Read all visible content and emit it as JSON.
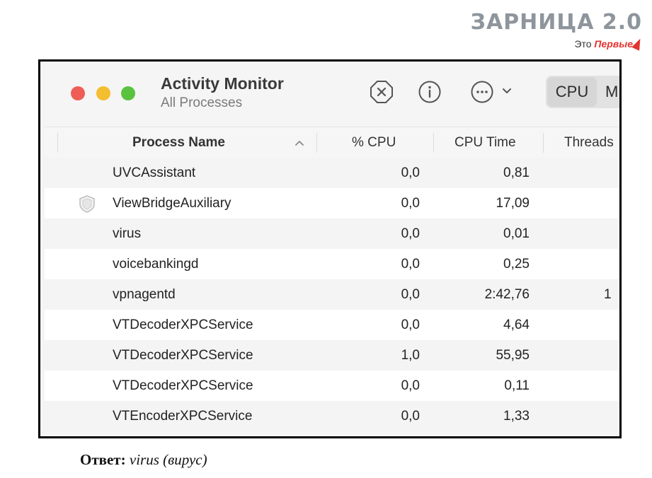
{
  "brand": {
    "title": "ЗАРНИЦА 2.0",
    "prefix": "Это",
    "name": "Первые"
  },
  "window": {
    "title": "Activity Monitor",
    "subtitle": "All Processes"
  },
  "toolbar": {
    "stop_icon": "stop-process-icon",
    "info_icon": "info-icon",
    "more_icon": "more-options-icon",
    "tabs": [
      {
        "label": "CPU",
        "selected": true
      },
      {
        "label": "M",
        "selected": false
      }
    ]
  },
  "table": {
    "columns": [
      "Process Name",
      "% CPU",
      "CPU Time",
      "Threads"
    ],
    "rows": [
      {
        "name": "UVCAssistant",
        "cpu": "0,0",
        "time": "0,81",
        "threads": ""
      },
      {
        "name": "ViewBridgeAuxiliary",
        "cpu": "0,0",
        "time": "17,09",
        "threads": "",
        "icon": "shield-app-icon"
      },
      {
        "name": "virus",
        "cpu": "0,0",
        "time": "0,01",
        "threads": ""
      },
      {
        "name": "voicebankingd",
        "cpu": "0,0",
        "time": "0,25",
        "threads": ""
      },
      {
        "name": "vpnagentd",
        "cpu": "0,0",
        "time": "2:42,76",
        "threads": "1"
      },
      {
        "name": "VTDecoderXPCService",
        "cpu": "0,0",
        "time": "4,64",
        "threads": ""
      },
      {
        "name": "VTDecoderXPCService",
        "cpu": "1,0",
        "time": "55,95",
        "threads": ""
      },
      {
        "name": "VTDecoderXPCService",
        "cpu": "0,0",
        "time": "0,11",
        "threads": ""
      },
      {
        "name": "VTEncoderXPCService",
        "cpu": "0,0",
        "time": "1,33",
        "threads": ""
      }
    ]
  },
  "answer": {
    "label": "Ответ:",
    "value": "virus (вирус)"
  },
  "colors": {
    "close": "#ee5e57",
    "minimize": "#f3be2f",
    "zoom": "#5ac23f",
    "brand_red": "#e3342f",
    "brand_gray": "#8e959c"
  }
}
